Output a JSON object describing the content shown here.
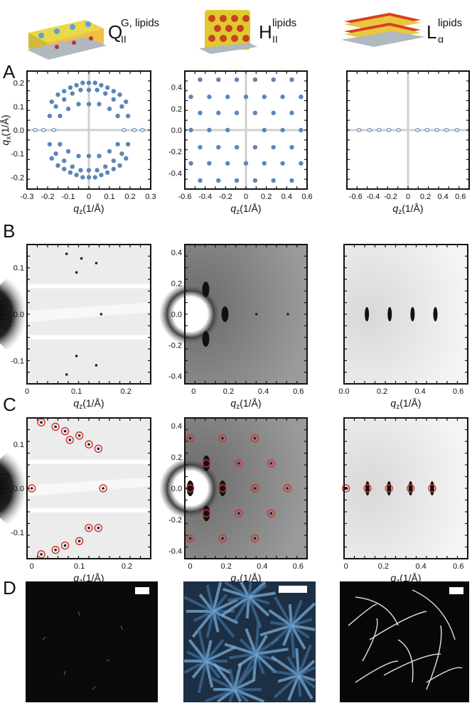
{
  "figure": {
    "columns": [
      {
        "main": "Q",
        "sub": "II",
        "sup": "G, lipids"
      },
      {
        "main": "H",
        "sub": "II",
        "sup": "lipids"
      },
      {
        "main": "L",
        "sub": "α",
        "sup": "lipids"
      }
    ],
    "panel_labels": [
      "A",
      "B",
      "C",
      "D"
    ],
    "y_axis_label": {
      "main": "q",
      "sub": "x",
      "unit": "(1/Å)"
    },
    "x_axis_label": {
      "main": "q",
      "sub": "z",
      "unit": "(1/Å)"
    }
  },
  "colors": {
    "simulated_peak": "#5b86b8",
    "indexed_ring": "#d9302a",
    "saxs_gray": "#9a9a9a",
    "micrograph_blue": "#4a8ac4"
  },
  "chart_data": [
    {
      "type": "scatter",
      "panel": "A",
      "phase": "QII G, lipids",
      "xlim": [
        -0.3,
        0.3
      ],
      "ylim": [
        -0.25,
        0.25
      ],
      "xticks": [
        "-0.3",
        "-0.2",
        "-0.1",
        "0",
        "0.1",
        "0.2",
        "0.3"
      ],
      "yticks": [
        "0.2",
        "0.1",
        "0.0",
        "-0.1",
        "-0.2"
      ],
      "points": [
        [
          0.0,
          0.2
        ],
        [
          0.03,
          0.2
        ],
        [
          -0.03,
          0.2
        ],
        [
          0.06,
          0.19
        ],
        [
          -0.06,
          0.19
        ],
        [
          0.09,
          0.18
        ],
        [
          -0.09,
          0.18
        ],
        [
          0.12,
          0.165
        ],
        [
          -0.12,
          0.165
        ],
        [
          0.15,
          0.15
        ],
        [
          -0.15,
          0.15
        ],
        [
          0.18,
          0.12
        ],
        [
          -0.18,
          0.12
        ],
        [
          0.0,
          0.17
        ],
        [
          0.04,
          0.17
        ],
        [
          -0.04,
          0.17
        ],
        [
          0.08,
          0.155
        ],
        [
          -0.08,
          0.155
        ],
        [
          0.12,
          0.13
        ],
        [
          -0.12,
          0.13
        ],
        [
          0.16,
          0.1
        ],
        [
          -0.16,
          0.1
        ],
        [
          0.19,
          0.06
        ],
        [
          -0.19,
          0.06
        ],
        [
          0.0,
          0.11
        ],
        [
          0.05,
          0.11
        ],
        [
          -0.05,
          0.11
        ],
        [
          0.1,
          0.09
        ],
        [
          -0.1,
          0.09
        ],
        [
          0.14,
          0.06
        ],
        [
          -0.14,
          0.06
        ],
        [
          0.0,
          -0.2
        ],
        [
          0.03,
          -0.2
        ],
        [
          -0.03,
          -0.2
        ],
        [
          0.06,
          -0.19
        ],
        [
          -0.06,
          -0.19
        ],
        [
          0.09,
          -0.18
        ],
        [
          -0.09,
          -0.18
        ],
        [
          0.12,
          -0.165
        ],
        [
          -0.12,
          -0.165
        ],
        [
          0.15,
          -0.15
        ],
        [
          -0.15,
          -0.15
        ],
        [
          0.18,
          -0.12
        ],
        [
          -0.18,
          -0.12
        ],
        [
          0.0,
          -0.17
        ],
        [
          0.04,
          -0.17
        ],
        [
          -0.04,
          -0.17
        ],
        [
          0.08,
          -0.155
        ],
        [
          -0.08,
          -0.155
        ],
        [
          0.12,
          -0.13
        ],
        [
          -0.12,
          -0.13
        ],
        [
          0.16,
          -0.1
        ],
        [
          -0.16,
          -0.1
        ],
        [
          0.19,
          -0.06
        ],
        [
          -0.19,
          -0.06
        ],
        [
          0.0,
          -0.11
        ],
        [
          0.05,
          -0.11
        ],
        [
          -0.05,
          -0.11
        ],
        [
          0.1,
          -0.09
        ],
        [
          -0.1,
          -0.09
        ],
        [
          0.14,
          -0.06
        ],
        [
          -0.14,
          -0.06
        ],
        [
          0.22,
          0.0
        ],
        [
          -0.22,
          0.0
        ],
        [
          0.26,
          0.0
        ],
        [
          -0.26,
          0.0
        ],
        [
          0.17,
          0.0
        ],
        [
          -0.17,
          0.0
        ]
      ],
      "grid": "zero lines"
    },
    {
      "type": "scatter",
      "panel": "A",
      "phase": "HII lipids",
      "xlim": [
        -0.6,
        0.6
      ],
      "ylim": [
        -0.55,
        0.55
      ],
      "xticks": [
        "-0.6",
        "-0.4",
        "-0.2",
        "0",
        "0.2",
        "0.4",
        "0.6"
      ],
      "yticks": [
        "0.4",
        "0.2",
        "0.0",
        "-0.2",
        "-0.4"
      ],
      "points": [
        [
          0.09,
          0.47
        ],
        [
          -0.09,
          0.47
        ],
        [
          0.27,
          0.47
        ],
        [
          -0.27,
          0.47
        ],
        [
          0.45,
          0.47
        ],
        [
          -0.45,
          0.47
        ],
        [
          0.0,
          0.31
        ],
        [
          0.18,
          0.31
        ],
        [
          -0.18,
          0.31
        ],
        [
          0.36,
          0.31
        ],
        [
          -0.36,
          0.31
        ],
        [
          0.54,
          0.31
        ],
        [
          -0.54,
          0.31
        ],
        [
          0.09,
          0.16
        ],
        [
          -0.09,
          0.16
        ],
        [
          0.27,
          0.16
        ],
        [
          -0.27,
          0.16
        ],
        [
          0.45,
          0.16
        ],
        [
          -0.45,
          0.16
        ],
        [
          0.18,
          0.0
        ],
        [
          -0.18,
          0.0
        ],
        [
          0.36,
          0.0
        ],
        [
          -0.36,
          0.0
        ],
        [
          0.54,
          0.0
        ],
        [
          -0.54,
          0.0
        ],
        [
          0.09,
          -0.16
        ],
        [
          -0.09,
          -0.16
        ],
        [
          0.27,
          -0.16
        ],
        [
          -0.27,
          -0.16
        ],
        [
          0.45,
          -0.16
        ],
        [
          -0.45,
          -0.16
        ],
        [
          0.0,
          -0.31
        ],
        [
          0.18,
          -0.31
        ],
        [
          -0.18,
          -0.31
        ],
        [
          0.36,
          -0.31
        ],
        [
          -0.36,
          -0.31
        ],
        [
          0.54,
          -0.31
        ],
        [
          -0.54,
          -0.31
        ],
        [
          0.09,
          -0.47
        ],
        [
          -0.09,
          -0.47
        ],
        [
          0.27,
          -0.47
        ],
        [
          -0.27,
          -0.47
        ],
        [
          0.45,
          -0.47
        ],
        [
          -0.45,
          -0.47
        ]
      ],
      "grid": "zero lines"
    },
    {
      "type": "scatter",
      "panel": "A",
      "phase": "Lα lipids",
      "xlim": [
        -0.7,
        0.7
      ],
      "ylim": [
        -0.55,
        0.55
      ],
      "xticks": [
        "-0.6",
        "-0.4",
        "-0.2",
        "0",
        "0.2",
        "0.4",
        "0.6"
      ],
      "yticks": [],
      "points": [
        [
          -0.56,
          0
        ],
        [
          -0.44,
          0
        ],
        [
          -0.33,
          0
        ],
        [
          -0.22,
          0
        ],
        [
          -0.11,
          0
        ],
        [
          0.11,
          0
        ],
        [
          0.22,
          0
        ],
        [
          0.33,
          0
        ],
        [
          0.44,
          0
        ],
        [
          0.56,
          0
        ]
      ],
      "grid": "zero lines"
    },
    {
      "type": "heatmap",
      "panel": "B",
      "phase": "QII G, lipids",
      "xlim": [
        0,
        0.25
      ],
      "ylim": [
        -0.15,
        0.15
      ],
      "xticks": [
        "0",
        "0.1",
        "0.2"
      ],
      "yticks": [
        "0.1",
        "0.0",
        "-0.1"
      ],
      "peaks": [
        [
          0.08,
          0.13
        ],
        [
          0.11,
          0.12
        ],
        [
          0.14,
          0.11
        ],
        [
          0.1,
          0.09
        ],
        [
          0.15,
          0.0
        ],
        [
          0.1,
          -0.09
        ],
        [
          0.14,
          -0.11
        ],
        [
          0.08,
          -0.13
        ]
      ]
    },
    {
      "type": "heatmap",
      "panel": "B",
      "phase": "HII lipids",
      "xlim": [
        -0.05,
        0.65
      ],
      "ylim": [
        -0.45,
        0.45
      ],
      "xticks": [
        "0",
        "0.2",
        "0.4",
        "0.6"
      ],
      "yticks": [
        "0.4",
        "0.2",
        "0.0",
        "-0.2",
        "-0.4"
      ],
      "peaks": [
        [
          0.07,
          0.16
        ],
        [
          0.07,
          -0.16
        ],
        [
          0.18,
          0.0
        ],
        [
          0.36,
          0.0
        ],
        [
          0.54,
          0.0
        ]
      ]
    },
    {
      "type": "heatmap",
      "panel": "B",
      "phase": "Lα lipids",
      "xlim": [
        0,
        0.65
      ],
      "ylim": [
        -0.45,
        0.45
      ],
      "xticks": [
        "0.0",
        "0.2",
        "0.4",
        "0.6"
      ],
      "yticks": [],
      "peaks": [
        [
          0.12,
          0.0
        ],
        [
          0.24,
          0.0
        ],
        [
          0.36,
          0.0
        ],
        [
          0.48,
          0.0
        ]
      ]
    },
    {
      "type": "heatmap",
      "panel": "C",
      "phase": "QII G, lipids",
      "xlim": [
        -0.01,
        0.25
      ],
      "ylim": [
        -0.16,
        0.16
      ],
      "xticks": [
        "0",
        "0.1",
        "0.2"
      ],
      "yticks": [
        "0.1",
        "0.0",
        "-0.1"
      ],
      "indexed": [
        [
          0.02,
          0.15
        ],
        [
          0.05,
          0.14
        ],
        [
          0.07,
          0.13
        ],
        [
          0.1,
          0.12
        ],
        [
          0.12,
          0.1
        ],
        [
          0.14,
          0.09
        ],
        [
          0.08,
          0.11
        ],
        [
          0.0,
          0.0
        ],
        [
          0.15,
          0.0
        ],
        [
          0.02,
          -0.15
        ],
        [
          0.05,
          -0.14
        ],
        [
          0.07,
          -0.13
        ],
        [
          0.1,
          -0.12
        ],
        [
          0.12,
          -0.09
        ],
        [
          0.14,
          -0.09
        ]
      ]
    },
    {
      "type": "heatmap",
      "panel": "C",
      "phase": "HII lipids",
      "xlim": [
        -0.03,
        0.65
      ],
      "ylim": [
        -0.45,
        0.45
      ],
      "xticks": [
        "0",
        "0.2",
        "0.4",
        "0.6"
      ],
      "yticks": [
        "0.4",
        "0.2",
        "0.0",
        "-0.2",
        "-0.4"
      ],
      "indexed": [
        [
          0.0,
          0.32
        ],
        [
          0.18,
          0.32
        ],
        [
          0.36,
          0.32
        ],
        [
          0.09,
          0.16
        ],
        [
          0.27,
          0.16
        ],
        [
          0.45,
          0.16
        ],
        [
          0.0,
          0.0
        ],
        [
          0.18,
          0.0
        ],
        [
          0.36,
          0.0
        ],
        [
          0.54,
          0.0
        ],
        [
          0.09,
          -0.16
        ],
        [
          0.27,
          -0.16
        ],
        [
          0.45,
          -0.16
        ],
        [
          0.0,
          -0.32
        ],
        [
          0.18,
          -0.32
        ],
        [
          0.36,
          -0.32
        ]
      ]
    },
    {
      "type": "heatmap",
      "panel": "C",
      "phase": "Lα lipids",
      "xlim": [
        -0.01,
        0.65
      ],
      "ylim": [
        -0.45,
        0.45
      ],
      "xticks": [
        "0",
        "0.2",
        "0.4",
        "0.6"
      ],
      "yticks": [],
      "indexed": [
        [
          0.0,
          0.0
        ],
        [
          0.115,
          0.0
        ],
        [
          0.23,
          0.0
        ],
        [
          0.345,
          0.0
        ],
        [
          0.46,
          0.0
        ]
      ]
    }
  ]
}
